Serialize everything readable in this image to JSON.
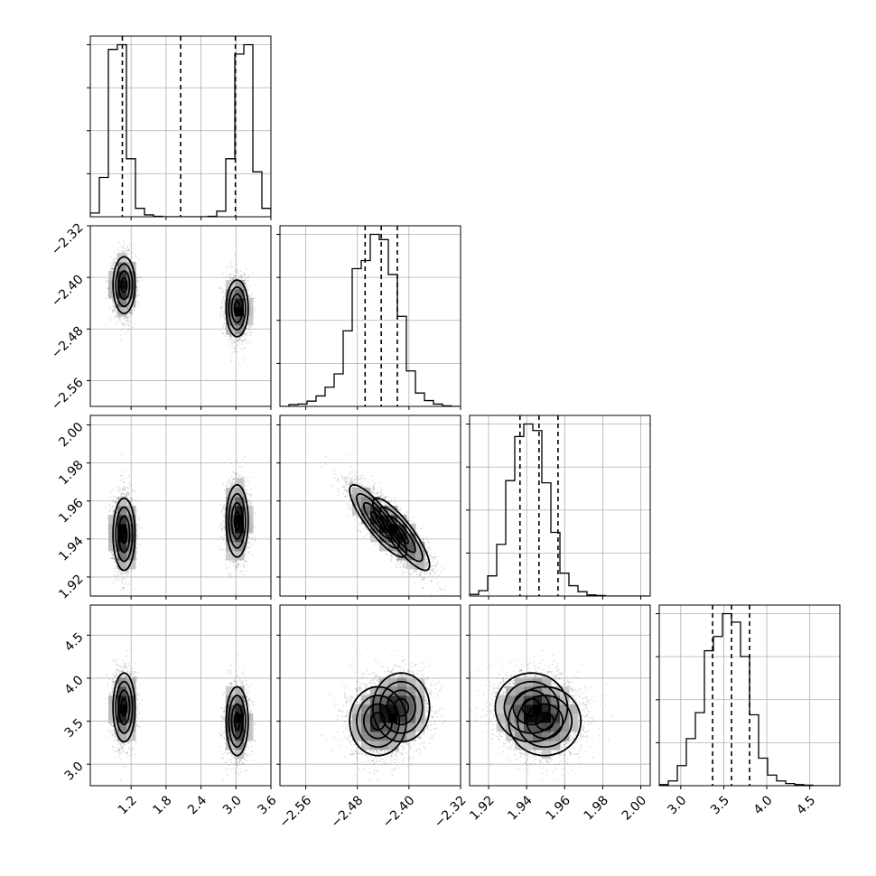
{
  "chart_data": {
    "type": "corner",
    "title": "",
    "grid": true,
    "num_samples_per_mode": 2600,
    "parameters": [
      {
        "index": 0,
        "range": [
          0.5,
          3.6
        ],
        "ticks": [
          1.2,
          1.8,
          2.4,
          3.0,
          3.6
        ],
        "tick_labels": [
          "1.2",
          "1.8",
          "2.4",
          "3.0",
          "3.6"
        ],
        "quantiles": [
          1.05,
          2.05,
          2.99
        ],
        "hist_bins": [
          0.5,
          0.655,
          0.81,
          0.965,
          1.12,
          1.275,
          1.43,
          1.585,
          1.74,
          1.895,
          2.05,
          2.205,
          2.36,
          2.515,
          2.67,
          2.825,
          2.98,
          3.135,
          3.29,
          3.445,
          3.6
        ],
        "hist_counts": [
          40,
          420,
          1790,
          1840,
          620,
          90,
          20,
          4,
          0,
          0,
          0,
          0,
          0,
          4,
          60,
          620,
          1740,
          1840,
          480,
          90
        ]
      },
      {
        "index": 1,
        "range": [
          -2.6,
          -2.32
        ],
        "ticks": [
          -2.56,
          -2.48,
          -2.4,
          -2.32
        ],
        "tick_labels": [
          "−2.56",
          "−2.48",
          "−2.40",
          "−2.32"
        ],
        "quantiles": [
          -2.468,
          -2.443,
          -2.418
        ],
        "hist_bins": [
          -2.6,
          -2.586,
          -2.572,
          -2.558,
          -2.544,
          -2.53,
          -2.516,
          -2.502,
          -2.488,
          -2.474,
          -2.46,
          -2.446,
          -2.432,
          -2.418,
          -2.404,
          -2.39,
          -2.376,
          -2.362,
          -2.348,
          -2.334,
          -2.32
        ],
        "hist_counts": [
          0,
          30,
          40,
          90,
          180,
          330,
          560,
          1300,
          2370,
          2510,
          2960,
          2870,
          2270,
          1550,
          610,
          230,
          100,
          40,
          10,
          0
        ]
      },
      {
        "index": 2,
        "range": [
          1.91,
          2.005
        ],
        "ticks": [
          1.92,
          1.94,
          1.96,
          1.98,
          2.0
        ],
        "tick_labels": [
          "1.92",
          "1.94",
          "1.96",
          "1.98",
          "2.00"
        ],
        "quantiles": [
          1.9365,
          1.9465,
          1.9565
        ],
        "hist_bins": [
          1.91,
          1.91475,
          1.9195,
          1.92425,
          1.929,
          1.93375,
          1.9385,
          1.94325,
          1.948,
          1.95275,
          1.9575,
          1.96225,
          1.967,
          1.97175,
          1.9765,
          1.98125,
          1.986,
          1.99075,
          1.9955,
          2.00025,
          2.005
        ],
        "hist_counts": [
          30,
          100,
          370,
          950,
          2120,
          2930,
          3160,
          3040,
          2080,
          1170,
          420,
          190,
          80,
          20,
          10,
          0,
          0,
          0,
          0,
          0
        ]
      },
      {
        "index": 3,
        "range": [
          2.75,
          4.85
        ],
        "ticks": [
          3.0,
          3.5,
          4.0,
          4.5
        ],
        "tick_labels": [
          "3.0",
          "3.5",
          "4.0",
          "4.5"
        ],
        "quantiles": [
          3.37,
          3.59,
          3.8
        ],
        "hist_bins": [
          2.75,
          2.855,
          2.96,
          3.065,
          3.17,
          3.275,
          3.38,
          3.485,
          3.59,
          3.695,
          3.8,
          3.905,
          4.01,
          4.115,
          4.22,
          4.325,
          4.43,
          4.535,
          4.64,
          4.745,
          4.85
        ],
        "hist_counts": [
          20,
          90,
          380,
          890,
          1380,
          2550,
          2820,
          3250,
          3090,
          2440,
          1340,
          520,
          200,
          90,
          40,
          20,
          10,
          0,
          0,
          0
        ]
      }
    ],
    "modes": [
      {
        "weight": 0.5,
        "mean": [
          1.08,
          -2.412,
          1.9425,
          3.66
        ],
        "sd": [
          0.095,
          0.022,
          0.0095,
          0.2
        ],
        "corr_1_2": -0.85
      },
      {
        "weight": 0.5,
        "mean": [
          3.02,
          -2.448,
          1.9495,
          3.5
        ],
        "sd": [
          0.095,
          0.022,
          0.0095,
          0.2
        ],
        "corr_1_2": -0.85
      }
    ]
  }
}
